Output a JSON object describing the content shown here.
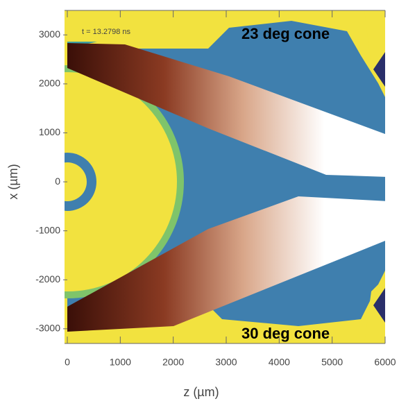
{
  "chart_data": {
    "type": "heatmap",
    "time_label": "t = 13.2798 ns",
    "annotations": [
      "23 deg cone",
      "30 deg cone"
    ],
    "xlabel": "z (µm)",
    "ylabel": "x (µm)",
    "xlim": [
      0,
      6000
    ],
    "ylim": [
      -3300,
      3500
    ],
    "xticks": [
      0,
      1000,
      2000,
      3000,
      4000,
      5000,
      6000
    ],
    "yticks": [
      -3000,
      -2000,
      -1000,
      0,
      1000,
      2000,
      3000
    ]
  }
}
